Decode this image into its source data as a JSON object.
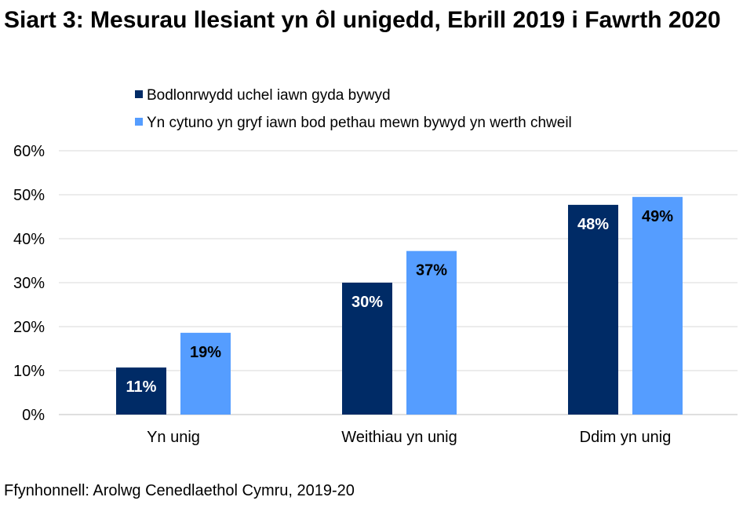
{
  "chart_data": {
    "type": "bar",
    "title": "Siart 3: Mesurau llesiant yn ôl unigedd, Ebrill 2019 i Fawrth 2020",
    "categories": [
      "Yn unig",
      "Weithiau yn unig",
      "Ddim yn unig"
    ],
    "series": [
      {
        "name": "Bodlonrwydd uchel iawn gyda bywyd",
        "color": "#002B66",
        "values": [
          10.7,
          30.0,
          47.7
        ],
        "labels": [
          "11%",
          "30%",
          "48%"
        ]
      },
      {
        "name": "Yn cytuno yn gryf iawn bod pethau mewn bywyd yn werth chweil",
        "color": "#559DFF",
        "values": [
          18.6,
          37.2,
          49.5
        ],
        "labels": [
          "19%",
          "37%",
          "49%"
        ]
      }
    ],
    "ylim": [
      0,
      60
    ],
    "yticks": [
      "0%",
      "10%",
      "20%",
      "30%",
      "40%",
      "50%",
      "60%"
    ],
    "grid": true,
    "legend": "top",
    "xlabel": "",
    "ylabel": ""
  },
  "source": "Ffynhonnell: Arolwg Cenedlaethol Cymru, 2019-20"
}
